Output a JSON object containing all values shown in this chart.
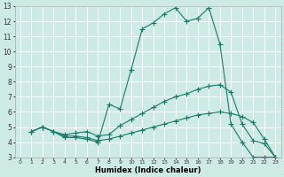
{
  "bg_color": "#ceeae5",
  "grid_color": "#ffffff",
  "line_color": "#1a7a6a",
  "xlabel": "Humidex (Indice chaleur)",
  "xlim": [
    -0.5,
    23.5
  ],
  "ylim": [
    3,
    13
  ],
  "xticks": [
    0,
    1,
    2,
    3,
    4,
    5,
    6,
    7,
    8,
    9,
    10,
    11,
    12,
    13,
    14,
    15,
    16,
    17,
    18,
    19,
    20,
    21,
    22,
    23
  ],
  "yticks": [
    3,
    4,
    5,
    6,
    7,
    8,
    9,
    10,
    11,
    12,
    13
  ],
  "line1_x": [
    1,
    2,
    3,
    4,
    5,
    6,
    7,
    8,
    9,
    10,
    11,
    12,
    13,
    14,
    15,
    16,
    17,
    18,
    19,
    20,
    21,
    22,
    23
  ],
  "line1_y": [
    4.7,
    5.0,
    4.7,
    4.3,
    4.3,
    4.2,
    4.0,
    6.5,
    6.2,
    8.8,
    11.5,
    11.9,
    12.5,
    12.9,
    12.0,
    12.2,
    12.9,
    10.5,
    5.2,
    4.0,
    3.0,
    3.0,
    3.0
  ],
  "line2_x": [
    1,
    2,
    3,
    4,
    5,
    6,
    7,
    8,
    9,
    10,
    11,
    12,
    13,
    14,
    15,
    16,
    17,
    18,
    19,
    20,
    21,
    22,
    23
  ],
  "line2_y": [
    4.7,
    5.0,
    4.7,
    4.5,
    4.6,
    4.7,
    4.4,
    4.5,
    5.1,
    5.5,
    5.9,
    6.3,
    6.7,
    7.0,
    7.2,
    7.5,
    7.7,
    7.8,
    7.3,
    5.2,
    4.1,
    3.9,
    3.0
  ],
  "line3_x": [
    1,
    2,
    3,
    4,
    5,
    6,
    7,
    8,
    9,
    10,
    11,
    12,
    13,
    14,
    15,
    16,
    17,
    18,
    19,
    20,
    21,
    22,
    23
  ],
  "line3_y": [
    4.7,
    5.0,
    4.7,
    4.4,
    4.4,
    4.3,
    4.1,
    4.2,
    4.4,
    4.6,
    4.8,
    5.0,
    5.2,
    5.4,
    5.6,
    5.8,
    5.9,
    6.0,
    5.9,
    5.7,
    5.3,
    4.2,
    3.0
  ]
}
